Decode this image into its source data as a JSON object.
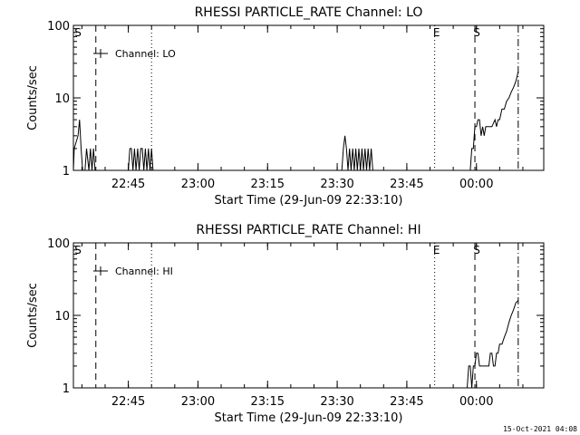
{
  "footer_timestamp": "15-Oct-2021 04:08",
  "chart_data": [
    {
      "type": "line",
      "title": "RHESSI PARTICLE_RATE Channel: LO",
      "xlabel": "Start Time (29-Jun-09 22:33:10)",
      "ylabel": "Counts/sec",
      "y_scale": "log",
      "ylim": [
        1,
        100
      ],
      "y_ticks": [
        1,
        10,
        100
      ],
      "y_tick_labels": [
        "1",
        "10",
        "100"
      ],
      "xlim": [
        "22:33:10",
        "00:14:30"
      ],
      "x_ticks": [
        "22:45",
        "23:00",
        "23:15",
        "23:30",
        "23:45",
        "00:00"
      ],
      "legend": {
        "entries": [
          "Channel: LO"
        ],
        "position": "top-left"
      },
      "markers": [
        {
          "time": "22:38",
          "style": "dashed",
          "label": "S"
        },
        {
          "time": "22:50",
          "style": "dotted",
          "label": ""
        },
        {
          "time": "23:51",
          "style": "dotted",
          "label": "E"
        },
        {
          "time": "23:59:40",
          "style": "dashed",
          "label": "S"
        },
        {
          "time": "00:09",
          "style": "dashdot",
          "label": ""
        }
      ],
      "series": [
        {
          "name": "Channel: LO",
          "x": [
            "22:33:10",
            "22:33:20",
            "22:34:10",
            "22:34:30",
            "22:34:50",
            "22:35:10",
            "22:35:40",
            "22:36:00",
            "22:36:30",
            "22:36:50",
            "22:37:10",
            "22:37:30",
            "22:37:50",
            "22:38:10",
            "22:38:30",
            "22:38:50",
            "22:39:10",
            "22:39:40",
            "22:45:00",
            "22:45:20",
            "22:45:40",
            "22:46:00",
            "22:46:20",
            "22:46:40",
            "22:47:00",
            "22:47:20",
            "22:47:40",
            "22:48:00",
            "22:48:20",
            "22:48:40",
            "22:49:00",
            "22:49:20",
            "22:49:40",
            "22:50:00",
            "22:50:20",
            "22:50:40",
            "23:31:00",
            "23:31:20",
            "23:31:40",
            "23:32:00",
            "23:32:20",
            "23:32:40",
            "23:33:00",
            "23:33:20",
            "23:33:40",
            "23:34:00",
            "23:34:20",
            "23:34:40",
            "23:35:00",
            "23:35:20",
            "23:35:40",
            "23:36:00",
            "23:36:20",
            "23:36:40",
            "23:37:00",
            "23:37:20",
            "23:37:40",
            "23:38:00",
            "23:58:00",
            "23:58:20",
            "23:58:40",
            "23:59:00",
            "23:59:20",
            "23:59:40",
            "00:00:00",
            "00:00:20",
            "00:00:40",
            "00:01:00",
            "00:01:20",
            "00:01:40",
            "00:02:00",
            "00:02:20",
            "00:02:40",
            "00:03:00",
            "00:03:20",
            "00:04:00",
            "00:04:20",
            "00:04:40",
            "00:05:00",
            "00:05:30",
            "00:06:00",
            "00:06:30",
            "00:07:00",
            "00:07:30",
            "00:08:00",
            "00:08:30",
            "00:09:00"
          ],
          "y": [
            1,
            2,
            3,
            5,
            2,
            1,
            1,
            2,
            1,
            2,
            1,
            2,
            1,
            1,
            1,
            1,
            1,
            1,
            1,
            2,
            2,
            1,
            2,
            1,
            2,
            1,
            2,
            2,
            1,
            2,
            1,
            2,
            1,
            2,
            1,
            1,
            1,
            2,
            3,
            2,
            1,
            2,
            1,
            2,
            1,
            2,
            1,
            2,
            1,
            2,
            1,
            2,
            1,
            2,
            1,
            2,
            1,
            1,
            1,
            1,
            1,
            2,
            2,
            4,
            4,
            5,
            5,
            3,
            4,
            3,
            4,
            4,
            4,
            4,
            4,
            5,
            4,
            5,
            5,
            7,
            7,
            9,
            10,
            12,
            14,
            17,
            23
          ]
        }
      ]
    },
    {
      "type": "line",
      "title": "RHESSI PARTICLE_RATE Channel: HI",
      "xlabel": "Start Time (29-Jun-09 22:33:10)",
      "ylabel": "Counts/sec",
      "y_scale": "log",
      "ylim": [
        1,
        100
      ],
      "y_ticks": [
        1,
        10,
        100
      ],
      "y_tick_labels": [
        "1",
        "10",
        "100"
      ],
      "xlim": [
        "22:33:10",
        "00:14:30"
      ],
      "x_ticks": [
        "22:45",
        "23:00",
        "23:15",
        "23:30",
        "23:45",
        "00:00"
      ],
      "legend": {
        "entries": [
          "Channel: HI"
        ],
        "position": "top-left"
      },
      "markers": [
        {
          "time": "22:38",
          "style": "dashed",
          "label": "S"
        },
        {
          "time": "22:50",
          "style": "dotted",
          "label": ""
        },
        {
          "time": "23:51",
          "style": "dotted",
          "label": "E"
        },
        {
          "time": "23:59:40",
          "style": "dashed",
          "label": "S"
        },
        {
          "time": "00:09",
          "style": "dashdot",
          "label": ""
        }
      ],
      "series": [
        {
          "name": "Channel: HI",
          "x": [
            "23:58:00",
            "23:58:20",
            "23:58:40",
            "23:59:00",
            "23:59:20",
            "23:59:40",
            "00:00:00",
            "00:00:20",
            "00:00:40",
            "00:01:00",
            "00:01:20",
            "00:01:40",
            "00:02:00",
            "00:02:20",
            "00:02:40",
            "00:03:00",
            "00:03:20",
            "00:03:40",
            "00:04:00",
            "00:04:20",
            "00:04:40",
            "00:05:00",
            "00:05:30",
            "00:06:00",
            "00:06:30",
            "00:07:00",
            "00:07:30",
            "00:08:00",
            "00:08:30",
            "00:09:00"
          ],
          "y": [
            1,
            2,
            2,
            1,
            2,
            2,
            3,
            3,
            2,
            2,
            2,
            2,
            2,
            2,
            2,
            3,
            3,
            2,
            2,
            3,
            3,
            4,
            4,
            5,
            6,
            8,
            10,
            12,
            15,
            16
          ]
        }
      ]
    }
  ]
}
